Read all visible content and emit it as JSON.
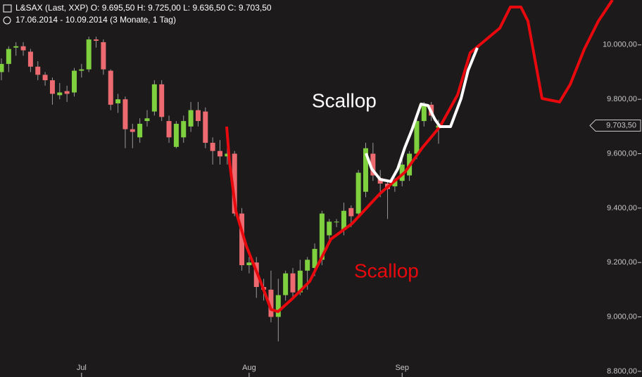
{
  "chart_data": {
    "type": "candlestick",
    "header": "L&SAX (Last, XXP)   O: 9.695,50   H: 9.725,00   L: 9.636,50   C: 9.703,50",
    "subheader": "17.06.2014 - 10.09.2014 (3 Monate, 1 Tag)",
    "annotations": [
      "Scallop",
      "Scallop"
    ],
    "categories": [
      null,
      null,
      null,
      null,
      null,
      null,
      null,
      null,
      null,
      null,
      null,
      "Jul",
      null,
      null,
      null,
      null,
      null,
      null,
      null,
      null,
      null,
      null,
      null,
      null,
      null,
      null,
      null,
      null,
      null,
      null,
      null,
      null,
      null,
      null,
      "Aug",
      null,
      null,
      null,
      null,
      null,
      null,
      null,
      null,
      null,
      null,
      null,
      null,
      null,
      null,
      null,
      null,
      null,
      null,
      null,
      null,
      "Sep",
      null,
      null,
      null,
      null,
      null
    ],
    "open": [
      9900,
      9930,
      9990,
      9995,
      9975,
      9920,
      9890,
      9870,
      9815,
      9830,
      9825,
      9905,
      9910,
      10020,
      10010,
      9905,
      9785,
      9800,
      9690,
      9660,
      9720,
      9755,
      9855,
      9720,
      9625,
      9660,
      9700,
      9760,
      9755,
      9640,
      9610,
      9590,
      9600,
      9380,
      9190,
      9200,
      9110,
      9100,
      9000,
      9080,
      9160,
      9090,
      9170,
      9180,
      9210,
      9300,
      9350,
      9320,
      9400,
      9380,
      9460,
      9600,
      9510,
      9490,
      9480,
      9500,
      9520,
      9600,
      9720,
      9780,
      9695.5
    ],
    "high": [
      9950,
      9995,
      10010,
      10010,
      9985,
      9940,
      9900,
      9880,
      9860,
      9850,
      9915,
      9930,
      10030,
      10030,
      10020,
      9910,
      9820,
      9810,
      9710,
      9730,
      9760,
      9870,
      9870,
      9740,
      9720,
      9740,
      9790,
      9790,
      9770,
      9660,
      9650,
      9620,
      9610,
      9400,
      9220,
      9220,
      9140,
      9170,
      9140,
      9170,
      9180,
      9210,
      9220,
      9270,
      9390,
      9360,
      9360,
      9420,
      9410,
      9540,
      9640,
      9640,
      9540,
      9500,
      9510,
      9580,
      9610,
      9730,
      9790,
      9790,
      9725
    ],
    "low": [
      9870,
      9900,
      9960,
      9960,
      9900,
      9870,
      9850,
      9780,
      9800,
      9790,
      9810,
      9880,
      9900,
      9990,
      9890,
      9760,
      9750,
      9620,
      9620,
      9640,
      9700,
      9740,
      9720,
      9640,
      9620,
      9640,
      9680,
      9700,
      9620,
      9560,
      9560,
      9560,
      9370,
      9170,
      9160,
      9070,
      9060,
      8980,
      8910,
      9060,
      9070,
      9080,
      9100,
      9150,
      9190,
      9280,
      9330,
      9300,
      9330,
      9370,
      9440,
      9500,
      9440,
      9360,
      9460,
      9480,
      9500,
      9580,
      9700,
      9720,
      9636.5
    ],
    "close": [
      9930,
      9985,
      9995,
      9980,
      9920,
      9890,
      9870,
      9820,
      9825,
      9820,
      9905,
      9910,
      10020,
      10015,
      9910,
      9780,
      9800,
      9690,
      9680,
      9710,
      9730,
      9855,
      9735,
      9660,
      9710,
      9720,
      9760,
      9720,
      9640,
      9610,
      9590,
      9600,
      9380,
      9190,
      9200,
      9110,
      9100,
      9000,
      9080,
      9160,
      9090,
      9170,
      9210,
      9250,
      9380,
      9350,
      9350,
      9390,
      9370,
      9530,
      9620,
      9520,
      9490,
      9470,
      9500,
      9560,
      9600,
      9720,
      9780,
      9740,
      9703.5
    ],
    "up_color": "#7fd03f",
    "down_color": "#ec6a70",
    "ylim": [
      8779,
      10165
    ],
    "yticks": [
      {
        "value": 8800,
        "label": "8.800,00"
      },
      {
        "value": 9000,
        "label": "9.000,00"
      },
      {
        "value": 9200,
        "label": "9.200,00"
      },
      {
        "value": 9400,
        "label": "9.400,00"
      },
      {
        "value": 9600,
        "label": "9.600,00"
      },
      {
        "value": 9800,
        "label": "9.800,00"
      },
      {
        "value": 10000,
        "label": "10.000,00"
      }
    ],
    "last_price": {
      "value": 9703.5,
      "label": "9.703,50"
    }
  }
}
